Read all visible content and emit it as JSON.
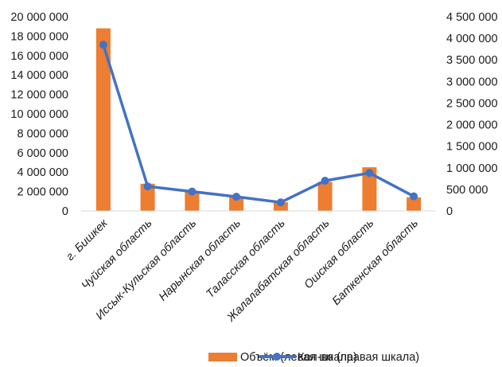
{
  "chart_data": {
    "type": "bar+line",
    "categories": [
      "г. Бишкек",
      "Чуйская область",
      "Иссык-Кульская область",
      "Нарынская область",
      "Таласская область",
      "Жалалабатская область",
      "Ошская область",
      "Баткенская область"
    ],
    "series": [
      {
        "name": "Объём (левая шкала)",
        "type": "bar",
        "axis": "left",
        "color": "#ED7D31",
        "values": [
          18800000,
          2800000,
          2000000,
          1500000,
          900000,
          3000000,
          4500000,
          1400000
        ]
      },
      {
        "name": "Кол-во (правая шкала)",
        "type": "line",
        "axis": "right",
        "color": "#4472C4",
        "values": [
          3850000,
          570000,
          450000,
          330000,
          200000,
          700000,
          880000,
          340000
        ]
      }
    ],
    "left_axis": {
      "ylim": [
        0,
        20000000
      ],
      "ticks": [
        "0",
        "2 000 000",
        "4 000 000",
        "6 000 000",
        "8 000 000",
        "10 000 000",
        "12 000 000",
        "14 000 000",
        "16 000 000",
        "18 000 000",
        "20 000 000"
      ]
    },
    "right_axis": {
      "ylim": [
        0,
        4500000
      ],
      "ticks": [
        "0",
        "500 000",
        "1 000 000",
        "1 500 000",
        "2 000 000",
        "2 500 000",
        "3 000 000",
        "3 500 000",
        "4 000 000",
        "4 500 000"
      ]
    },
    "grid": false,
    "legend": {
      "position": "bottom"
    }
  }
}
